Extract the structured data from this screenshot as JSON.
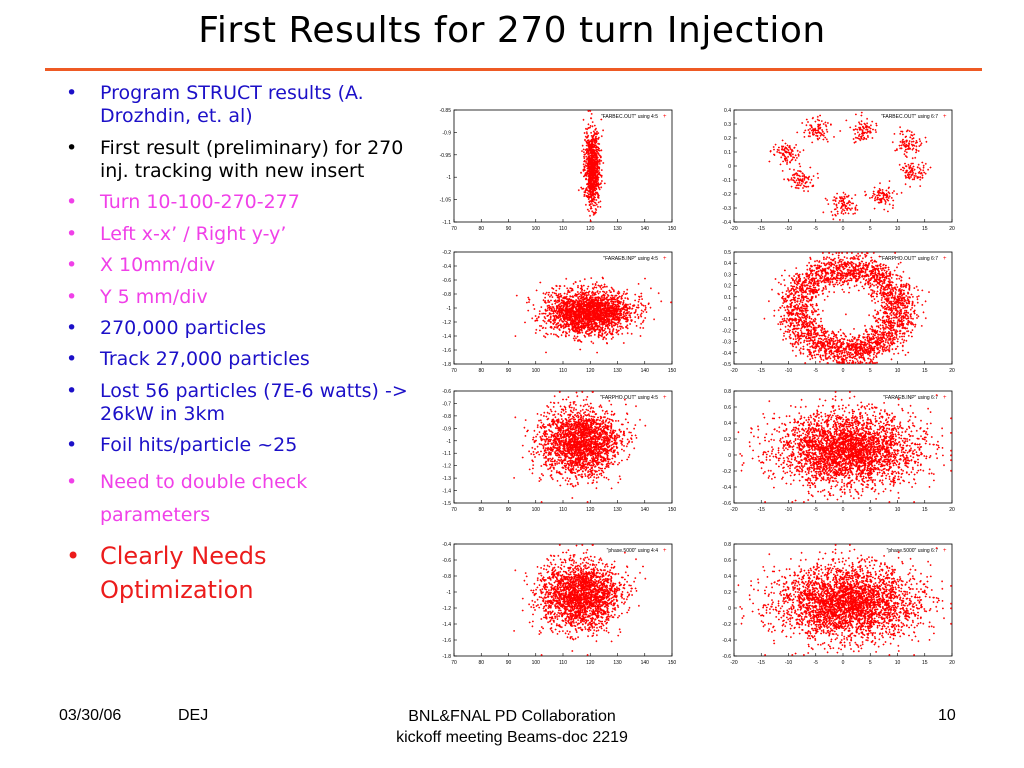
{
  "title": "First Results for 270 turn Injection",
  "bullet_char": "•",
  "bullets": [
    {
      "text": "Program STRUCT results (A. Drozhdin, et. al)",
      "color": "#1c10c8"
    },
    {
      "text": "First result (preliminary) for 270 inj. tracking with new insert",
      "color": "#000000"
    },
    {
      "text": "Turn 10-100-270-277",
      "color": "#f040e8"
    },
    {
      "text": "Left x-x’ / Right y-y’",
      "color": "#f040e8"
    },
    {
      "text": "X  10mm/div",
      "color": "#f040e8"
    },
    {
      "text": "Y 5 mm/div",
      "color": "#f040e8"
    },
    {
      "text": "270,000 particles",
      "color": "#1c10c8"
    },
    {
      "text": "Track 27,000 particles",
      "color": "#1c10c8"
    },
    {
      "text": "Lost 56  particles (7E-6 watts) -> 26kW in 3km",
      "color": "#1c10c8"
    },
    {
      "text": "Foil hits/particle ~25",
      "color": "#1c10c8"
    },
    {
      "text": "Need to double check parameters",
      "color": "#f040e8"
    },
    {
      "text": "Clearly Needs Optimization",
      "color": "#ec1c1c"
    }
  ],
  "plots": [
    {
      "legend": "\"FARBEC.OUT\" using 4:5",
      "xticks": [
        "70",
        "80",
        "90",
        "100",
        "110",
        "120",
        "130",
        "140",
        "150"
      ],
      "yticks": [
        "-0.85",
        "-0.9",
        "-0.95",
        "-1",
        "-1.05",
        "-1.1"
      ],
      "shape": "narrow",
      "xrange": [
        70,
        150
      ]
    },
    {
      "legend": "\"FARBEC.OUT\" using 6:7",
      "xticks": [
        "-20",
        "-15",
        "-10",
        "-5",
        "0",
        "5",
        "10",
        "15",
        "20"
      ],
      "yticks": [
        "0.4",
        "0.3",
        "0.2",
        "0.1",
        "0",
        "-0.1",
        "-0.2",
        "-0.3",
        "-0.4"
      ],
      "shape": "clusters",
      "xrange": [
        -20,
        20
      ]
    },
    {
      "legend": "\"FARAEB.INP\" using 4:5",
      "xticks": [
        "70",
        "80",
        "90",
        "100",
        "110",
        "120",
        "130",
        "140",
        "150"
      ],
      "yticks": [
        "-0.2",
        "-0.4",
        "-0.6",
        "-0.8",
        "-1",
        "-1.2",
        "-1.4",
        "-1.6",
        "-1.8"
      ],
      "shape": "ellipse",
      "xrange": [
        70,
        150
      ]
    },
    {
      "legend": "\"FARPHO.OUT\" using 6:7",
      "xticks": [
        "-20",
        "-15",
        "-10",
        "-5",
        "0",
        "5",
        "10",
        "15",
        "20"
      ],
      "yticks": [
        "0.5",
        "0.4",
        "0.3",
        "0.2",
        "0.1",
        "0",
        "-0.1",
        "-0.2",
        "-0.3",
        "-0.4",
        "-0.5"
      ],
      "shape": "ring",
      "xrange": [
        -20,
        20
      ]
    },
    {
      "legend": "\"FARPHO.OUT\" using 4:5",
      "xticks": [
        "70",
        "80",
        "90",
        "100",
        "110",
        "120",
        "130",
        "140",
        "150"
      ],
      "yticks": [
        "-0.6",
        "-0.7",
        "-0.8",
        "-0.9",
        "-1",
        "-1.1",
        "-1.2",
        "-1.3",
        "-1.4",
        "-1.5"
      ],
      "shape": "blob",
      "xrange": [
        70,
        150
      ]
    },
    {
      "legend": "\"FARAEB.INP\" using 6:7",
      "xticks": [
        "-20",
        "-15",
        "-10",
        "-5",
        "0",
        "5",
        "10",
        "15",
        "20"
      ],
      "yticks": [
        "0.8",
        "0.6",
        "0.4",
        "0.2",
        "0",
        "-0.2",
        "-0.4",
        "-0.6"
      ],
      "shape": "wide",
      "xrange": [
        -20,
        20
      ]
    },
    {
      "legend": "\"phase.5000\" using 4:4",
      "xticks": [
        "70",
        "80",
        "90",
        "100",
        "110",
        "120",
        "130",
        "140",
        "150"
      ],
      "yticks": [
        "-0.4",
        "-0.6",
        "-0.8",
        "-1",
        "-1.2",
        "-1.4",
        "-1.6",
        "-1.8"
      ],
      "shape": "blob",
      "xrange": [
        70,
        150
      ]
    },
    {
      "legend": "\"phase.5000\" using 6:7",
      "xticks": [
        "-20",
        "-15",
        "-10",
        "-5",
        "0",
        "5",
        "10",
        "15",
        "20"
      ],
      "yticks": [
        "0.8",
        "0.6",
        "0.4",
        "0.2",
        "0",
        "-0.2",
        "-0.4",
        "-0.6"
      ],
      "shape": "wide",
      "xrange": [
        -20,
        20
      ]
    }
  ],
  "colors": {
    "points": "#ff0000",
    "rule": "#ee5a24"
  },
  "footer": {
    "date": "03/30/06",
    "author": "DEJ",
    "center_line1": "BNL&FNAL PD Collaboration",
    "center_line2": "kickoff meeting Beams-doc 2219",
    "page": "10"
  }
}
